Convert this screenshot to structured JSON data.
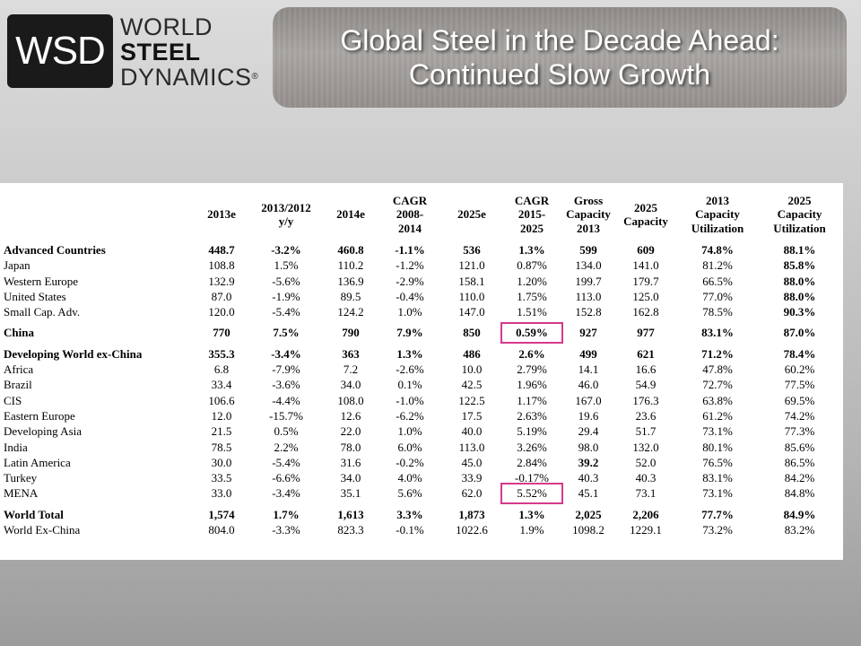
{
  "logo": {
    "abbr": "WSD",
    "line1": "WORLD",
    "line2": "STEEL",
    "line3": "DYNAMICS",
    "reg": "®"
  },
  "title": {
    "line1": "Global Steel in the Decade Ahead:",
    "line2": "Continued Slow Growth"
  },
  "table": {
    "headers": [
      "",
      "2013e",
      "2013/2012\ny/y",
      "2014e",
      "CAGR\n2008-\n2014",
      "2025e",
      "CAGR\n2015-\n2025",
      "Gross\nCapacity\n2013",
      "2025\nCapacity",
      "2013\nCapacity\nUtilization",
      "2025\nCapacity\nUtilization"
    ],
    "rows": [
      {
        "bold": true,
        "cells": [
          "Advanced Countries",
          "448.7",
          "-3.2%",
          "460.8",
          "-1.1%",
          "536",
          "1.3%",
          "599",
          "609",
          "74.8%",
          "88.1%"
        ]
      },
      {
        "cells": [
          "Japan",
          "108.8",
          "1.5%",
          "110.2",
          "-1.2%",
          "121.0",
          "0.87%",
          "134.0",
          "141.0",
          "81.2%",
          "85.8%"
        ],
        "bold_cols": [
          10
        ]
      },
      {
        "cells": [
          "Western Europe",
          "132.9",
          "-5.6%",
          "136.9",
          "-2.9%",
          "158.1",
          "1.20%",
          "199.7",
          "179.7",
          "66.5%",
          "88.0%"
        ],
        "bold_cols": [
          10
        ]
      },
      {
        "cells": [
          "United States",
          "87.0",
          "-1.9%",
          "89.5",
          "-0.4%",
          "110.0",
          "1.75%",
          "113.0",
          "125.0",
          "77.0%",
          "88.0%"
        ],
        "bold_cols": [
          10
        ]
      },
      {
        "cells": [
          "Small Cap. Adv.",
          "120.0",
          "-5.4%",
          "124.2",
          "1.0%",
          "147.0",
          "1.51%",
          "152.8",
          "162.8",
          "78.5%",
          "90.3%"
        ],
        "bold_cols": [
          10
        ]
      },
      {
        "spacer": true
      },
      {
        "bold": true,
        "cells": [
          "China",
          "770",
          "7.5%",
          "790",
          "7.9%",
          "850",
          "0.59%",
          "927",
          "977",
          "83.1%",
          "87.0%"
        ]
      },
      {
        "spacer": true
      },
      {
        "bold": true,
        "cells": [
          "Developing World ex-China",
          "355.3",
          "-3.4%",
          "363",
          "1.3%",
          "486",
          "2.6%",
          "499",
          "621",
          "71.2%",
          "78.4%"
        ]
      },
      {
        "cells": [
          "Africa",
          "6.8",
          "-7.9%",
          "7.2",
          "-2.6%",
          "10.0",
          "2.79%",
          "14.1",
          "16.6",
          "47.8%",
          "60.2%"
        ]
      },
      {
        "cells": [
          "Brazil",
          "33.4",
          "-3.6%",
          "34.0",
          "0.1%",
          "42.5",
          "1.96%",
          "46.0",
          "54.9",
          "72.7%",
          "77.5%"
        ]
      },
      {
        "cells": [
          "CIS",
          "106.6",
          "-4.4%",
          "108.0",
          "-1.0%",
          "122.5",
          "1.17%",
          "167.0",
          "176.3",
          "63.8%",
          "69.5%"
        ]
      },
      {
        "cells": [
          "Eastern Europe",
          "12.0",
          "-15.7%",
          "12.6",
          "-6.2%",
          "17.5",
          "2.63%",
          "19.6",
          "23.6",
          "61.2%",
          "74.2%"
        ]
      },
      {
        "cells": [
          "Developing Asia",
          "21.5",
          "0.5%",
          "22.0",
          "1.0%",
          "40.0",
          "5.19%",
          "29.4",
          "51.7",
          "73.1%",
          "77.3%"
        ]
      },
      {
        "cells": [
          "India",
          "78.5",
          "2.2%",
          "78.0",
          "6.0%",
          "113.0",
          "3.26%",
          "98.0",
          "132.0",
          "80.1%",
          "85.6%"
        ]
      },
      {
        "cells": [
          "Latin America",
          "30.0",
          "-5.4%",
          "31.6",
          "-0.2%",
          "45.0",
          "2.84%",
          "39.2",
          "52.0",
          "76.5%",
          "86.5%"
        ],
        "bold_cols": [
          7
        ]
      },
      {
        "cells": [
          "Turkey",
          "33.5",
          "-6.6%",
          "34.0",
          "4.0%",
          "33.9",
          "-0.17%",
          "40.3",
          "40.3",
          "83.1%",
          "84.2%"
        ]
      },
      {
        "cells": [
          "MENA",
          "33.0",
          "-3.4%",
          "35.1",
          "5.6%",
          "62.0",
          "5.52%",
          "45.1",
          "73.1",
          "73.1%",
          "84.8%"
        ]
      },
      {
        "spacer": true
      },
      {
        "bold": true,
        "cells": [
          "World Total",
          "1,574",
          "1.7%",
          "1,613",
          "3.3%",
          "1,873",
          "1.3%",
          "2,025",
          "2,206",
          "77.7%",
          "84.9%"
        ]
      },
      {
        "cells": [
          "World Ex-China",
          "804.0",
          "-3.3%",
          "823.3",
          "-0.1%",
          "1022.6",
          "1.9%",
          "1098.2",
          "1229.1",
          "73.2%",
          "83.2%"
        ]
      }
    ],
    "highlighted_cells": [
      {
        "row": "China",
        "col": 6
      },
      {
        "row": "MENA",
        "col": 6
      }
    ],
    "highlight_color": "#d63a8a"
  }
}
